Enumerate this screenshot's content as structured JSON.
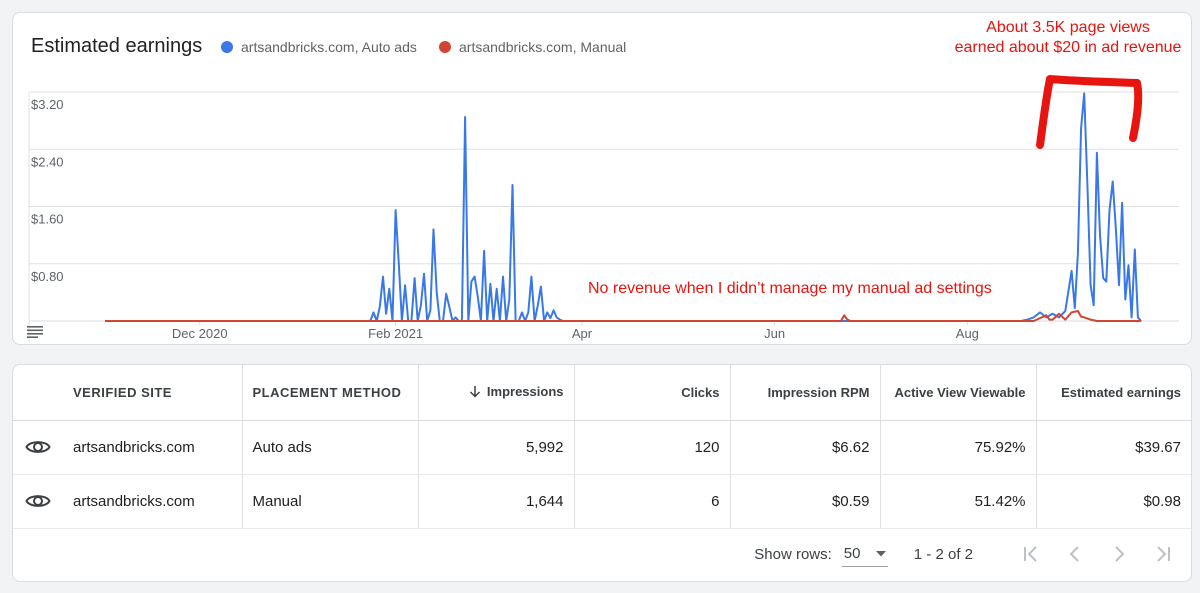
{
  "chart": {
    "title": "Estimated earnings",
    "legend": [
      {
        "label": "artsandbricks.com, Auto ads",
        "color": "#3a78e7"
      },
      {
        "label": "artsandbricks.com, Manual",
        "color": "#d24433"
      }
    ],
    "annotations": {
      "top_line1": "About 3.5K page views",
      "top_line2": "earned about $20 in ad revenue",
      "middle": "No revenue when I didn’t manage my manual ad settings",
      "color": "#e8140f"
    }
  },
  "chart_data": {
    "type": "line",
    "y_ticks": [
      "$3.20",
      "$2.40",
      "$1.60",
      "$0.80"
    ],
    "y_tick_values": [
      3.2,
      2.4,
      1.6,
      0.8
    ],
    "ylim": [
      0,
      3.2
    ],
    "x_ticks": [
      "Dec 2020",
      "Feb 2021",
      "Apr",
      "Jun",
      "Aug"
    ],
    "x_tick_days": [
      30,
      92,
      151,
      212,
      273
    ],
    "xlim": [
      0,
      340
    ],
    "grid": true,
    "legend_position": "top-left",
    "series": [
      {
        "name": "artsandbricks.com, Auto ads",
        "color": "#3a78e7",
        "points": [
          [
            0,
            0
          ],
          [
            84,
            0
          ],
          [
            85,
            0.12
          ],
          [
            86,
            0
          ],
          [
            87,
            0.2
          ],
          [
            88,
            0.62
          ],
          [
            89,
            0.1
          ],
          [
            90,
            0.45
          ],
          [
            91,
            0
          ],
          [
            92,
            1.55
          ],
          [
            93,
            0.8
          ],
          [
            94,
            0
          ],
          [
            95,
            0.5
          ],
          [
            96,
            0
          ],
          [
            97,
            0
          ],
          [
            98,
            0.6
          ],
          [
            99,
            0
          ],
          [
            100,
            0.22
          ],
          [
            101,
            0.66
          ],
          [
            102,
            0
          ],
          [
            103,
            0.15
          ],
          [
            104,
            1.28
          ],
          [
            105,
            0.4
          ],
          [
            106,
            0
          ],
          [
            107,
            0
          ],
          [
            108,
            0.38
          ],
          [
            109,
            0.2
          ],
          [
            110,
            0
          ],
          [
            111,
            0.05
          ],
          [
            112,
            0
          ],
          [
            113,
            0
          ],
          [
            114,
            2.85
          ],
          [
            115,
            0
          ],
          [
            116,
            0.55
          ],
          [
            117,
            0.62
          ],
          [
            118,
            0.35
          ],
          [
            119,
            0
          ],
          [
            120,
            0.98
          ],
          [
            121,
            0
          ],
          [
            122,
            0.52
          ],
          [
            123,
            0
          ],
          [
            124,
            0.45
          ],
          [
            125,
            0
          ],
          [
            126,
            0.62
          ],
          [
            127,
            0
          ],
          [
            128,
            0.3
          ],
          [
            129,
            1.9
          ],
          [
            130,
            0
          ],
          [
            131,
            0
          ],
          [
            132,
            0.12
          ],
          [
            133,
            0
          ],
          [
            134,
            0.12
          ],
          [
            135,
            0.62
          ],
          [
            136,
            0
          ],
          [
            137,
            0.22
          ],
          [
            138,
            0.48
          ],
          [
            139,
            0
          ],
          [
            140,
            0.12
          ],
          [
            141,
            0.04
          ],
          [
            142,
            0.15
          ],
          [
            143,
            0.05
          ],
          [
            144,
            0.02
          ],
          [
            145,
            0
          ],
          [
            290,
            0
          ],
          [
            292,
            0.02
          ],
          [
            294,
            0.05
          ],
          [
            296,
            0.12
          ],
          [
            298,
            0.05
          ],
          [
            300,
            0.1
          ],
          [
            302,
            0.05
          ],
          [
            304,
            0.14
          ],
          [
            306,
            0.7
          ],
          [
            307,
            0.18
          ],
          [
            308,
            0.95
          ],
          [
            309,
            2.7
          ],
          [
            310,
            3.18
          ],
          [
            311,
            1.9
          ],
          [
            312,
            0.5
          ],
          [
            313,
            0.22
          ],
          [
            314,
            2.35
          ],
          [
            315,
            1.2
          ],
          [
            316,
            0.6
          ],
          [
            317,
            0.55
          ],
          [
            318,
            1.55
          ],
          [
            319,
            1.95
          ],
          [
            320,
            1.3
          ],
          [
            321,
            0.5
          ],
          [
            322,
            1.65
          ],
          [
            323,
            0.3
          ],
          [
            324,
            0.78
          ],
          [
            325,
            0.05
          ],
          [
            326,
            1.0
          ],
          [
            327,
            0.05
          ],
          [
            328,
            0
          ]
        ]
      },
      {
        "name": "artsandbricks.com, Manual",
        "color": "#d24433",
        "points": [
          [
            0,
            0
          ],
          [
            233,
            0
          ],
          [
            234,
            0.08
          ],
          [
            235,
            0.02
          ],
          [
            236,
            0
          ],
          [
            294,
            0
          ],
          [
            296,
            0.04
          ],
          [
            298,
            0.08
          ],
          [
            299,
            0.02
          ],
          [
            300,
            0.02
          ],
          [
            302,
            0.1
          ],
          [
            304,
            0.02
          ],
          [
            306,
            0.12
          ],
          [
            308,
            0.14
          ],
          [
            309,
            0.06
          ],
          [
            310,
            0.05
          ],
          [
            312,
            0.02
          ],
          [
            314,
            0
          ],
          [
            328,
            0
          ]
        ]
      }
    ]
  },
  "table": {
    "headers": {
      "site": "VERIFIED SITE",
      "method": "PLACEMENT METHOD",
      "impressions": "Impressions",
      "clicks": "Clicks",
      "rpm": "Impression RPM",
      "viewable": "Active View Viewable",
      "earnings": "Estimated earnings"
    },
    "rows": [
      {
        "site": "artsandbricks.com",
        "method": "Auto ads",
        "impressions": "5,992",
        "clicks": "120",
        "rpm": "$6.62",
        "viewable": "75.92%",
        "earnings": "$39.67"
      },
      {
        "site": "artsandbricks.com",
        "method": "Manual",
        "impressions": "1,644",
        "clicks": "6",
        "rpm": "$0.59",
        "viewable": "51.42%",
        "earnings": "$0.98"
      }
    ]
  },
  "pagination": {
    "rows_label": "Show rows:",
    "rows_value": "50",
    "range": "1 - 2 of 2"
  }
}
